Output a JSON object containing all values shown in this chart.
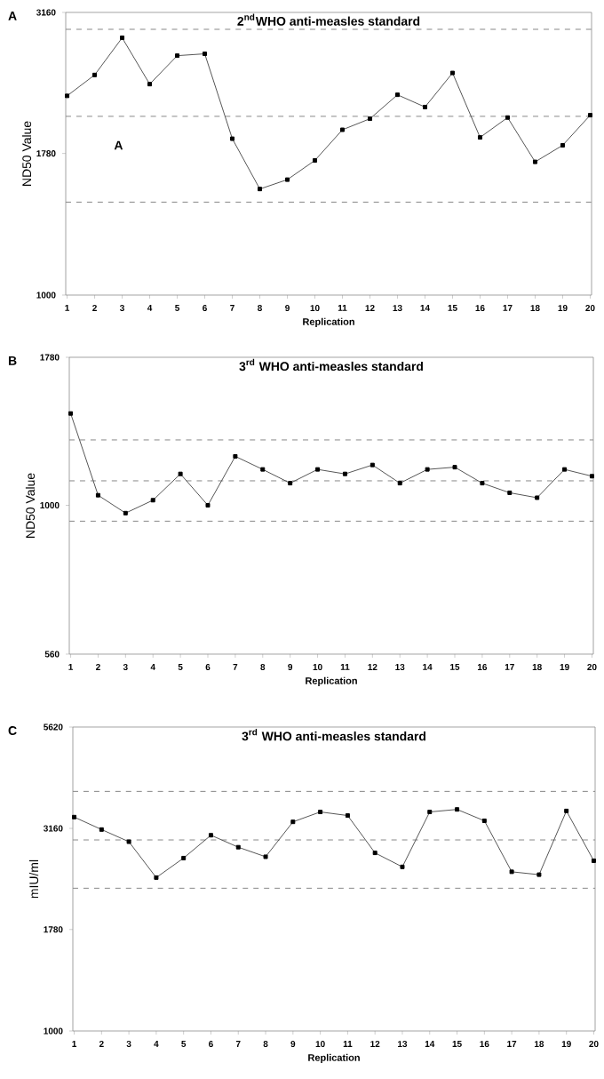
{
  "chart_data": [
    {
      "type": "line",
      "title": "2$^{nd}$WHO anti-measles standard",
      "xlabel": "Replication",
      "ylabel": "ND50 Value",
      "annotations": [
        "A",
        "A"
      ],
      "categories": [
        "1",
        "2",
        "3",
        "4",
        "5",
        "6",
        "7",
        "8",
        "9",
        "10",
        "11",
        "12",
        "13",
        "14",
        "15",
        "16",
        "17",
        "18",
        "19",
        "20"
      ],
      "values": [
        2250,
        2450,
        2850,
        2360,
        2650,
        2670,
        1890,
        1540,
        1600,
        1730,
        1960,
        2050,
        2260,
        2150,
        2470,
        1900,
        2060,
        1720,
        1840,
        2080
      ],
      "color": "#555555",
      "marker": "square",
      "log": "y",
      "ylim": [
        1000,
        3160
      ],
      "yticks": [
        1000,
        1780,
        3160
      ],
      "grid": false,
      "ref_lines": [
        {
          "axis": "y",
          "value": 2950,
          "color": "#888888",
          "line_style": "dashed"
        },
        {
          "axis": "y",
          "value": 2070,
          "color": "#888888",
          "line_style": "dashed"
        },
        {
          "axis": "y",
          "value": 1460,
          "color": "#888888",
          "line_style": "dashed"
        }
      ]
    },
    {
      "type": "line",
      "title": "3$^{rd}$ WHO anti-measles standard",
      "xlabel": "Replication",
      "ylabel": "ND50 Value",
      "annotations": [
        "B"
      ],
      "categories": [
        "1",
        "2",
        "3",
        "4",
        "5",
        "6",
        "7",
        "8",
        "9",
        "10",
        "11",
        "12",
        "13",
        "14",
        "15",
        "16",
        "17",
        "18",
        "19",
        "20"
      ],
      "values": [
        1430,
        1040,
        970,
        1020,
        1130,
        1000,
        1210,
        1150,
        1090,
        1150,
        1130,
        1170,
        1090,
        1150,
        1160,
        1090,
        1050,
        1030,
        1150,
        1120
      ],
      "color": "#555555",
      "marker": "square",
      "log": "y",
      "ylim": [
        560,
        1780
      ],
      "yticks": [
        560,
        1000,
        1780
      ],
      "grid": false,
      "ref_lines": [
        {
          "axis": "y",
          "value": 1290,
          "color": "#888888",
          "line_style": "dashed"
        },
        {
          "axis": "y",
          "value": 1100,
          "color": "#888888",
          "line_style": "dashed"
        },
        {
          "axis": "y",
          "value": 940,
          "color": "#888888",
          "line_style": "dashed"
        }
      ]
    },
    {
      "type": "line",
      "title": "3$^{rd}$ WHO anti-measles standard",
      "xlabel": "Replication",
      "ylabel": "mIU/ml",
      "annotations": [
        "C"
      ],
      "categories": [
        "1",
        "2",
        "3",
        "4",
        "5",
        "6",
        "7",
        "8",
        "9",
        "10",
        "11",
        "12",
        "13",
        "14",
        "15",
        "16",
        "17",
        "18",
        "19",
        "20"
      ],
      "values": [
        3370,
        3140,
        2930,
        2390,
        2670,
        3040,
        2840,
        2690,
        3280,
        3470,
        3400,
        2750,
        2540,
        3470,
        3520,
        3300,
        2470,
        2430,
        3490,
        2630
      ],
      "color": "#555555",
      "marker": "square",
      "log": "y",
      "ylim": [
        1000,
        5620
      ],
      "yticks": [
        1000,
        1780,
        3160,
        5620
      ],
      "grid": false,
      "ref_lines": [
        {
          "axis": "y",
          "value": 3900,
          "color": "#888888",
          "line_style": "dashed"
        },
        {
          "axis": "y",
          "value": 2960,
          "color": "#888888",
          "line_style": "dashed"
        },
        {
          "axis": "y",
          "value": 2250,
          "color": "#888888",
          "line_style": "dashed"
        }
      ]
    }
  ]
}
